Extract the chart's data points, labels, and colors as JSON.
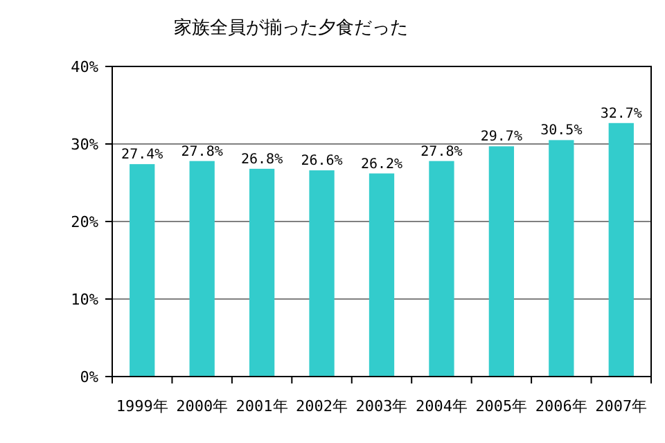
{
  "chart_data": {
    "type": "bar",
    "title": "家族全員が揃った夕食だった",
    "categories": [
      "1999年",
      "2000年",
      "2001年",
      "2002年",
      "2003年",
      "2004年",
      "2005年",
      "2006年",
      "2007年"
    ],
    "values": [
      27.4,
      27.8,
      26.8,
      26.6,
      26.2,
      27.8,
      29.7,
      30.5,
      32.7
    ],
    "value_labels": [
      "27.4%",
      "27.8%",
      "26.8%",
      "26.6%",
      "26.2%",
      "27.8%",
      "29.7%",
      "30.5%",
      "32.7%"
    ],
    "color": "#33cccc",
    "ylim": [
      0,
      40
    ],
    "yticks": [
      {
        "value": 0,
        "label": "0%"
      },
      {
        "value": 10,
        "label": "10%"
      },
      {
        "value": 20,
        "label": "20%"
      },
      {
        "value": 30,
        "label": "30%"
      },
      {
        "value": 40,
        "label": "40%"
      }
    ],
    "grid": "y"
  }
}
